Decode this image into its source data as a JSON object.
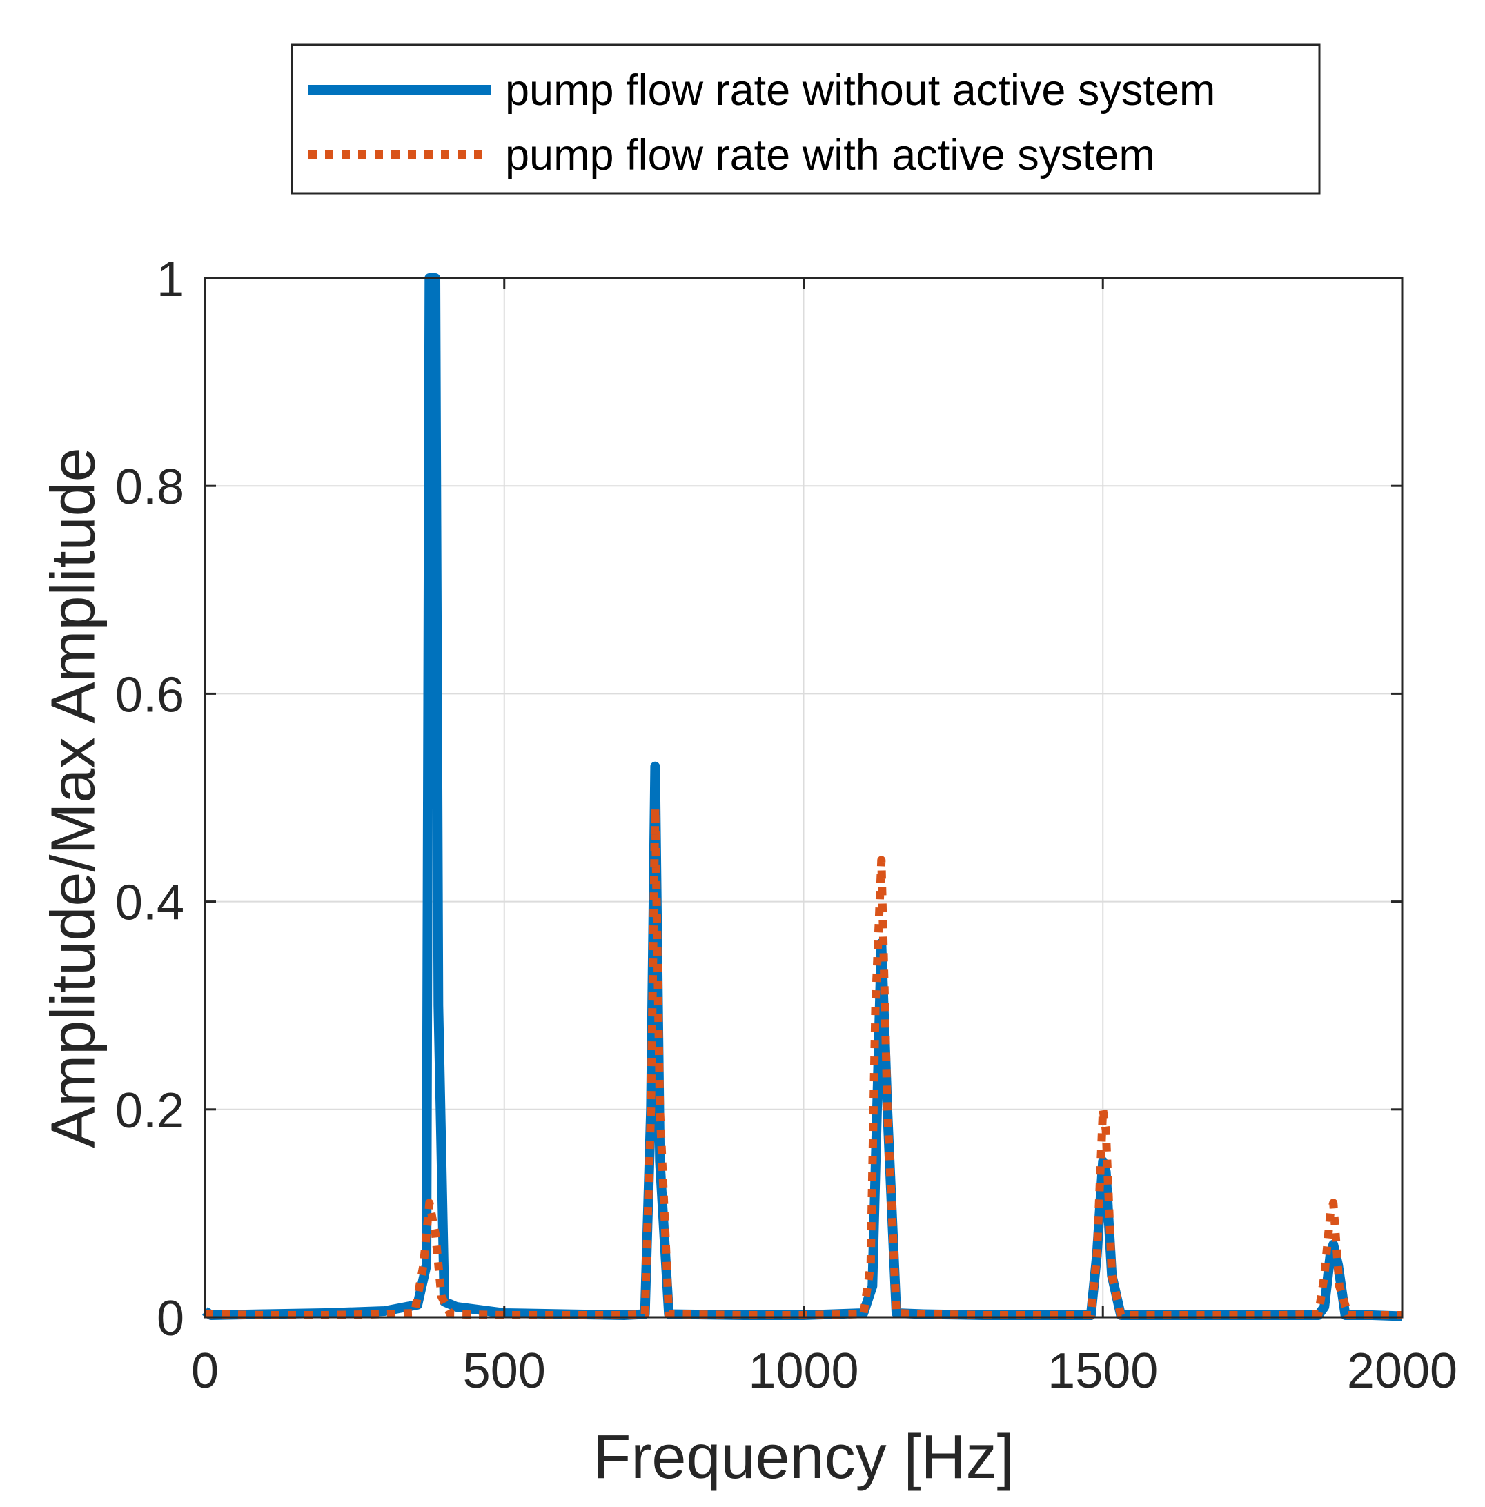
{
  "chart_data": {
    "type": "line",
    "title": "",
    "xlabel": "Frequency [Hz]",
    "ylabel": "Amplitude/Max Amplitude",
    "xlim": [
      0,
      2000
    ],
    "ylim": [
      0,
      1
    ],
    "xticks": [
      0,
      500,
      1000,
      1500,
      2000
    ],
    "xtick_labels": [
      "0",
      "500",
      "1000",
      "1500",
      "2000"
    ],
    "yticks": [
      0,
      0.2,
      0.4,
      0.6,
      0.8,
      1
    ],
    "ytick_labels": [
      "0",
      "0.2",
      "0.4",
      "0.6",
      "0.8",
      "1"
    ],
    "grid": true,
    "legend_position": "top-outside",
    "series": [
      {
        "name": "pump flow rate without active system",
        "color": "#0072BD",
        "style": "solid",
        "x": [
          0,
          10,
          100,
          200,
          300,
          355,
          370,
          375,
          385,
          390,
          400,
          420,
          500,
          600,
          700,
          735,
          745,
          752,
          760,
          775,
          900,
          1000,
          1100,
          1115,
          1125,
          1130,
          1140,
          1155,
          1200,
          1300,
          1400,
          1480,
          1490,
          1500,
          1505,
          1515,
          1530,
          1600,
          1700,
          1800,
          1860,
          1870,
          1880,
          1885,
          1893,
          1905,
          1950,
          2000
        ],
        "y": [
          0.006,
          0.002,
          0.003,
          0.004,
          0.006,
          0.012,
          0.05,
          1.0,
          1.0,
          0.3,
          0.015,
          0.01,
          0.004,
          0.003,
          0.002,
          0.003,
          0.2,
          0.53,
          0.15,
          0.003,
          0.002,
          0.002,
          0.004,
          0.03,
          0.25,
          0.36,
          0.2,
          0.004,
          0.003,
          0.002,
          0.002,
          0.002,
          0.06,
          0.15,
          0.14,
          0.04,
          0.002,
          0.002,
          0.002,
          0.002,
          0.002,
          0.01,
          0.06,
          0.07,
          0.05,
          0.002,
          0.002,
          0.001
        ]
      },
      {
        "name": "pump flow rate with active system",
        "color": "#D95319",
        "style": "dotted",
        "x": [
          0,
          100,
          200,
          300,
          350,
          365,
          375,
          385,
          395,
          410,
          500,
          600,
          700,
          735,
          745,
          752,
          760,
          775,
          900,
          1000,
          1100,
          1112,
          1120,
          1130,
          1140,
          1155,
          1200,
          1300,
          1400,
          1480,
          1490,
          1500,
          1505,
          1515,
          1530,
          1600,
          1700,
          1800,
          1860,
          1870,
          1880,
          1885,
          1895,
          1910,
          2000
        ],
        "y": [
          0.003,
          0.002,
          0.002,
          0.003,
          0.004,
          0.05,
          0.11,
          0.08,
          0.02,
          0.003,
          0.002,
          0.002,
          0.002,
          0.003,
          0.2,
          0.49,
          0.2,
          0.003,
          0.002,
          0.002,
          0.003,
          0.05,
          0.3,
          0.44,
          0.2,
          0.004,
          0.003,
          0.002,
          0.002,
          0.002,
          0.06,
          0.2,
          0.18,
          0.04,
          0.002,
          0.002,
          0.002,
          0.002,
          0.003,
          0.04,
          0.1,
          0.11,
          0.03,
          0.002,
          0.002
        ]
      }
    ]
  }
}
